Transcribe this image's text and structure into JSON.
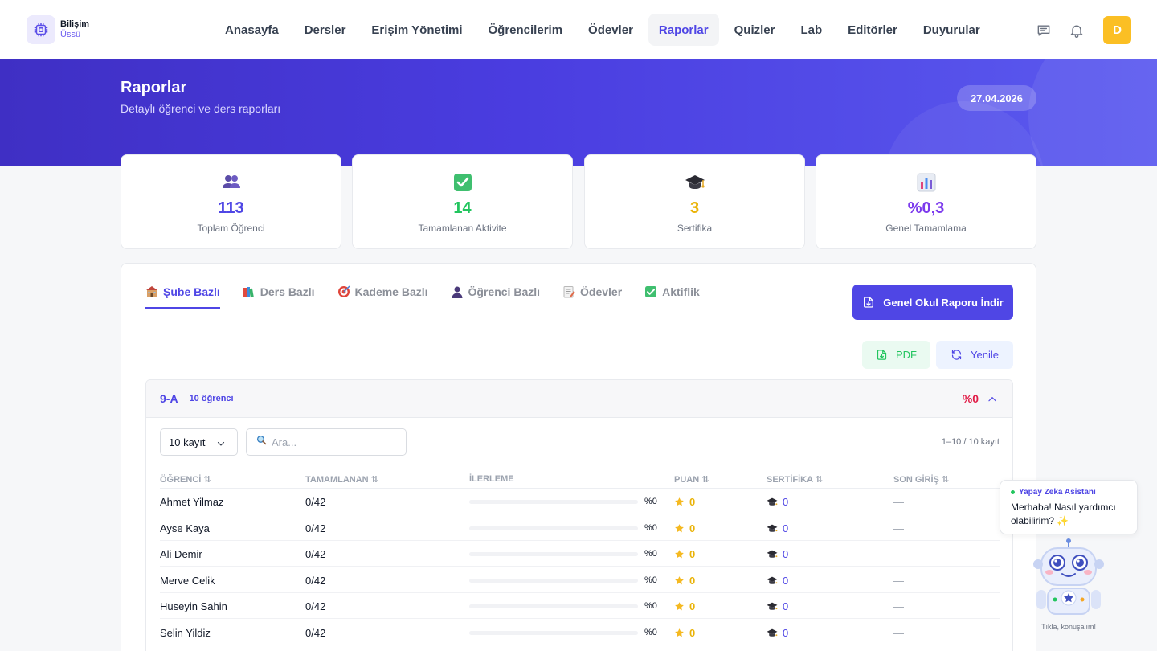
{
  "app": {
    "logo_line1": "Bilişim",
    "logo_line2": "Üssü"
  },
  "nav": {
    "items": [
      {
        "label": "Anasayfa"
      },
      {
        "label": "Dersler"
      },
      {
        "label": "Erişim Yönetimi"
      },
      {
        "label": "Öğrencilerim"
      },
      {
        "label": "Ödevler"
      },
      {
        "label": "Raporlar",
        "active": true
      },
      {
        "label": "Quizler"
      },
      {
        "label": "Lab"
      },
      {
        "label": "Editörler"
      },
      {
        "label": "Duyurular"
      }
    ],
    "avatar_initial": "D"
  },
  "hero": {
    "title": "Raporlar",
    "subtitle": "Detaylı öğrenci ve ders raporları",
    "date": "27.04.2026"
  },
  "stats": [
    {
      "icon": "users-icon",
      "value": "113",
      "label": "Toplam Öğrenci",
      "color": "#4f46e5"
    },
    {
      "icon": "check-icon",
      "value": "14",
      "label": "Tamamlanan Aktivite",
      "color": "#22c55e"
    },
    {
      "icon": "graduation-cap-icon",
      "value": "3",
      "label": "Sertifika",
      "color": "#eab308"
    },
    {
      "icon": "bar-chart-icon",
      "value": "%0,3",
      "label": "Genel Tamamlama",
      "color": "#7c3aed"
    }
  ],
  "tabs": [
    {
      "label": "Şube Bazlı",
      "icon": "school-icon",
      "active": true
    },
    {
      "label": "Ders Bazlı",
      "icon": "books-icon"
    },
    {
      "label": "Kademe Bazlı",
      "icon": "target-icon"
    },
    {
      "label": "Öğrenci Bazlı",
      "icon": "person-icon"
    },
    {
      "label": "Ödevler",
      "icon": "memo-icon"
    },
    {
      "label": "Aktiflik",
      "icon": "check-box-icon"
    }
  ],
  "actions": {
    "download_label": "Genel Okul Raporu İndir",
    "pdf_label": "PDF",
    "refresh_label": "Yenile"
  },
  "section": {
    "name": "9-A",
    "count": "10 öğrenci",
    "percent": "%0",
    "page_size": "10 kayıt",
    "search_placeholder": "Ara...",
    "records": "1–10 / 10 kayıt",
    "columns": [
      "ÖĞRENCİ ⇅",
      "TAMAMLANAN ⇅",
      "İLERLEME",
      "PUAN ⇅",
      "SERTİFİKA ⇅",
      "SON GİRİŞ ⇅"
    ],
    "rows": [
      {
        "name": "Ahmet Yilmaz",
        "completed": "0/42",
        "progress": 0,
        "progress_label": "%0",
        "points": "0",
        "certs": "0",
        "last_login": "—"
      },
      {
        "name": "Ayse Kaya",
        "completed": "0/42",
        "progress": 0,
        "progress_label": "%0",
        "points": "0",
        "certs": "0",
        "last_login": "—"
      },
      {
        "name": "Ali Demir",
        "completed": "0/42",
        "progress": 0,
        "progress_label": "%0",
        "points": "0",
        "certs": "0",
        "last_login": "—"
      },
      {
        "name": "Merve Celik",
        "completed": "0/42",
        "progress": 0,
        "progress_label": "%0",
        "points": "0",
        "certs": "0",
        "last_login": "—"
      },
      {
        "name": "Huseyin Sahin",
        "completed": "0/42",
        "progress": 0,
        "progress_label": "%0",
        "points": "0",
        "certs": "0",
        "last_login": "—"
      },
      {
        "name": "Selin Yildiz",
        "completed": "0/42",
        "progress": 0,
        "progress_label": "%0",
        "points": "0",
        "certs": "0",
        "last_login": "—"
      }
    ]
  },
  "assistant": {
    "title": "Yapay Zeka Asistanı",
    "message": "Merhaba! Nasıl yardımcı olabilirim? ✨",
    "caption": "Tıkla, konuşalım!"
  }
}
